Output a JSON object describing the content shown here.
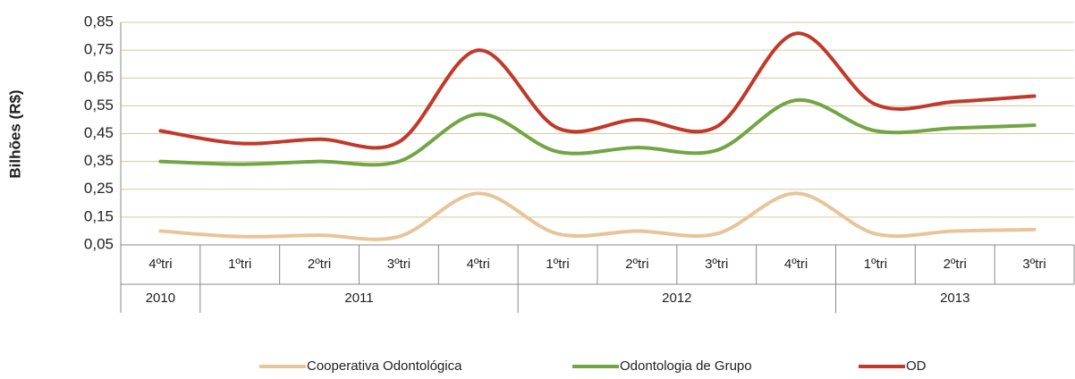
{
  "chart_data": {
    "type": "line",
    "y_label": "Bilhões (R$)",
    "year_groups": [
      {
        "label": "2010",
        "quarters": [
          "4ºtri"
        ]
      },
      {
        "label": "2011",
        "quarters": [
          "1ºtri",
          "2ºtri",
          "3ºtri",
          "4ºtri"
        ]
      },
      {
        "label": "2012",
        "quarters": [
          "1ºtri",
          "2ºtri",
          "3ºtri",
          "4ºtri"
        ]
      },
      {
        "label": "2013",
        "quarters": [
          "1ºtri",
          "2ºtri",
          "3ºtri"
        ]
      }
    ],
    "series": [
      {
        "name": "Cooperativa Odontológica",
        "color": "#e8c49a",
        "values": [
          0.1,
          0.08,
          0.085,
          0.08,
          0.235,
          0.09,
          0.1,
          0.09,
          0.235,
          0.09,
          0.1,
          0.105
        ]
      },
      {
        "name": "Odontologia de Grupo",
        "color": "#72a544",
        "values": [
          0.35,
          0.34,
          0.35,
          0.35,
          0.52,
          0.385,
          0.4,
          0.39,
          0.57,
          0.46,
          0.47,
          0.48
        ]
      },
      {
        "name": "OD",
        "color": "#c0392b",
        "values": [
          0.46,
          0.415,
          0.43,
          0.42,
          0.75,
          0.47,
          0.5,
          0.475,
          0.81,
          0.555,
          0.565,
          0.585
        ]
      }
    ],
    "ylim": [
      0.05,
      0.85
    ],
    "yticks": [
      {
        "value": 0.05,
        "label": "0,05"
      },
      {
        "value": 0.15,
        "label": "0,15"
      },
      {
        "value": 0.25,
        "label": "0,25"
      },
      {
        "value": 0.35,
        "label": "0,35"
      },
      {
        "value": 0.45,
        "label": "0,45"
      },
      {
        "value": 0.55,
        "label": "0,55"
      },
      {
        "value": 0.65,
        "label": "0,65"
      },
      {
        "value": 0.75,
        "label": "0,75"
      },
      {
        "value": 0.85,
        "label": "0,85"
      }
    ],
    "grid": true,
    "legend": "bottom"
  }
}
